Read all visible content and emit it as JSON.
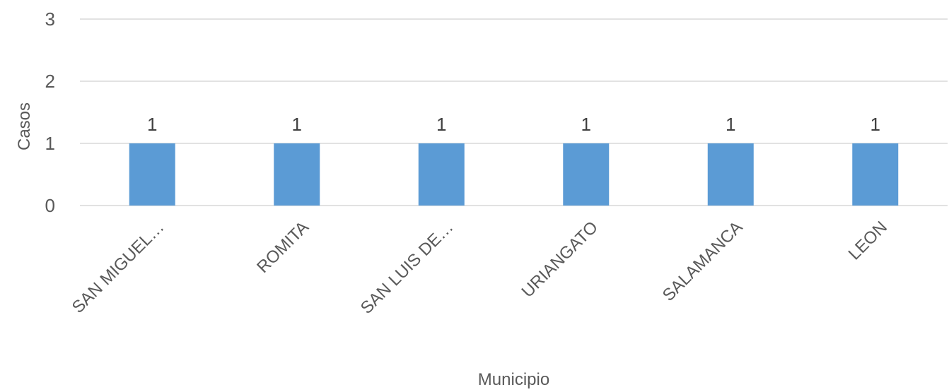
{
  "chart_data": {
    "type": "bar",
    "title": "",
    "xlabel": "Municipio",
    "ylabel": "Casos",
    "categories": [
      "SAN MIGUEL…",
      "ROMITA",
      "SAN LUIS DE…",
      "URIANGATO",
      "SALAMANCA",
      "LEON"
    ],
    "values": [
      1,
      1,
      1,
      1,
      1,
      1
    ],
    "data_labels": [
      "1",
      "1",
      "1",
      "1",
      "1",
      "1"
    ],
    "ylim": [
      0,
      3
    ],
    "yticks": [
      0,
      1,
      2,
      3
    ],
    "grid": true,
    "legend": "none",
    "colors": {
      "bar": "#5B9BD5",
      "grid": "#D9D9D9",
      "text": "#595959"
    }
  }
}
